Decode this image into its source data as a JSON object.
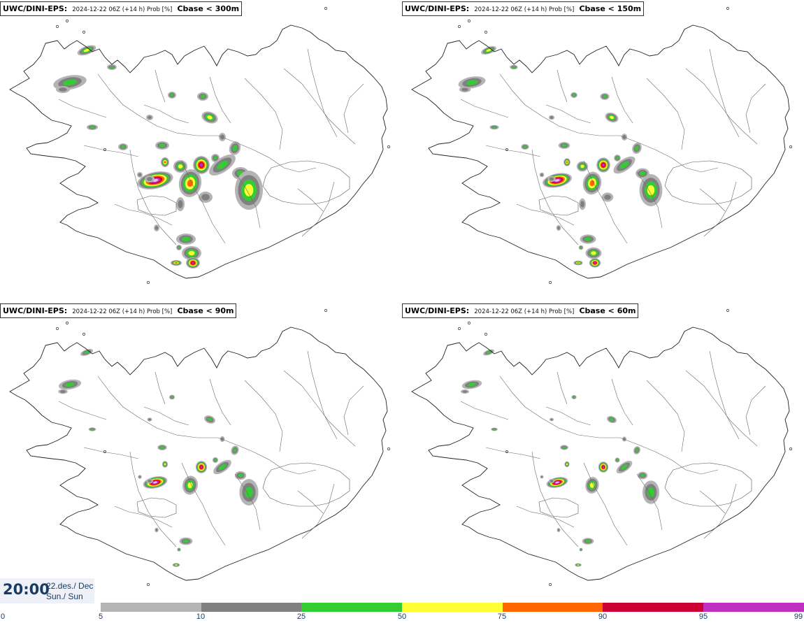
{
  "panels": [
    {
      "model": "UWC/DINI-EPS",
      "info": "2024-12-22 06Z (+14 h) Prob [%]",
      "param": "Cbase < 300m",
      "level": 0
    },
    {
      "model": "UWC/DINI-EPS",
      "info": "2024-12-22 06Z (+14 h) Prob [%]",
      "param": "Cbase < 150m",
      "level": 1
    },
    {
      "model": "UWC/DINI-EPS",
      "info": "2024-12-22 06Z (+14 h) Prob [%]",
      "param": "Cbase < 90m",
      "level": 2
    },
    {
      "model": "UWC/DINI-EPS",
      "info": "2024-12-22 06Z (+14 h) Prob [%]",
      "param": "Cbase < 60m",
      "level": 3
    }
  ],
  "time": {
    "hour": "20:00",
    "date": "22.des./ Dec",
    "day": "Sun./ Sun"
  },
  "legend": {
    "colors": [
      "#b4b4b4",
      "#808080",
      "#33cc33",
      "#ffff33",
      "#ff6600",
      "#cc0033",
      "#c030c0",
      "#f2b3f2"
    ],
    "ticks": [
      "0",
      "5",
      "10",
      "25",
      "50",
      "75",
      "90",
      "95",
      "99"
    ]
  }
}
